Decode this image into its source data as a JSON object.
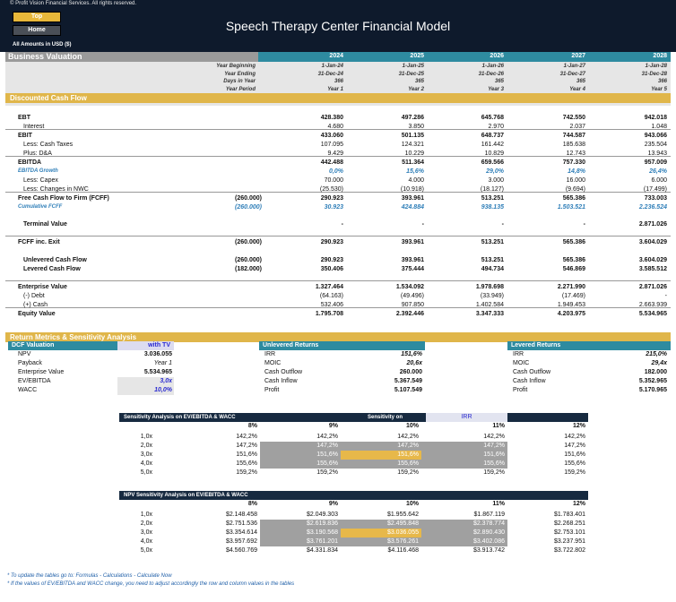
{
  "header": {
    "copyright": "© Profit Vision Financial Services. All rights reserved.",
    "top_button": "Top",
    "home_button": "Home",
    "title": "Speech Therapy Center Financial Model",
    "amounts": "All Amounts in  USD ($)"
  },
  "valuation": {
    "section_label": "Business Valuation",
    "years": [
      "2024",
      "2025",
      "2026",
      "2027",
      "2028"
    ],
    "period_rows": [
      {
        "label": "Year Beginning",
        "values": [
          "1-Jan-24",
          "1-Jan-25",
          "1-Jan-26",
          "1-Jan-27",
          "1-Jan-28"
        ]
      },
      {
        "label": "Year Ending",
        "values": [
          "31-Dec-24",
          "31-Dec-25",
          "31-Dec-26",
          "31-Dec-27",
          "31-Dec-28"
        ]
      },
      {
        "label": "Days in Year",
        "values": [
          "366",
          "365",
          "365",
          "365",
          "366"
        ]
      },
      {
        "label": "Year Period",
        "values": [
          "Year 1",
          "Year 2",
          "Year 3",
          "Year 4",
          "Year 5"
        ]
      }
    ]
  },
  "dcf": {
    "section_label": "Discounted Cash Flow",
    "rows": [
      {
        "label": "EBT",
        "v0": "",
        "vals": [
          "428.380",
          "497.286",
          "645.768",
          "742.550",
          "942.018"
        ],
        "style": "bold"
      },
      {
        "label": "Interest",
        "v0": "",
        "vals": [
          "4.680",
          "3.850",
          "2.970",
          "2.037",
          "1.048"
        ],
        "style": "indent"
      },
      {
        "label": "EBIT",
        "v0": "",
        "vals": [
          "433.060",
          "501.135",
          "648.737",
          "744.587",
          "943.066"
        ],
        "style": "bold"
      },
      {
        "label": "Less: Cash Taxes",
        "v0": "",
        "vals": [
          "107.095",
          "124.321",
          "161.442",
          "185.638",
          "235.504"
        ],
        "style": "indent"
      },
      {
        "label": "Plus: D&A",
        "v0": "",
        "vals": [
          "9.429",
          "10.229",
          "10.829",
          "12.743",
          "13.943"
        ],
        "style": "indent"
      },
      {
        "label": "EBITDA",
        "v0": "",
        "vals": [
          "442.488",
          "511.364",
          "659.566",
          "757.330",
          "957.009"
        ],
        "style": "bold"
      },
      {
        "label": "EBITDA Growth",
        "v0": "",
        "vals": [
          "0,0%",
          "15,6%",
          "29,0%",
          "14,8%",
          "26,4%"
        ],
        "style": "growth"
      },
      {
        "label": "Less: Capex",
        "v0": "",
        "vals": [
          "70.000",
          "4.000",
          "3.000",
          "16.000",
          "6.000"
        ],
        "style": "indent"
      },
      {
        "label": "Less: Changes in NWC",
        "v0": "",
        "vals": [
          "(25.530)",
          "(10.918)",
          "(18.127)",
          "(9.694)",
          "(17.499)"
        ],
        "style": "indent"
      },
      {
        "label": "Free Cash Flow to Firm (FCFF)",
        "v0": "(260.000)",
        "vals": [
          "290.923",
          "393.961",
          "513.251",
          "565.386",
          "733.003"
        ],
        "style": "bold"
      },
      {
        "label": "Cumulative FCFF",
        "v0": "(260.000)",
        "vals": [
          "30.923",
          "424.884",
          "938.135",
          "1.503.521",
          "2.236.524"
        ],
        "style": "growth"
      },
      {
        "label": "Terminal Value",
        "v0": "",
        "vals": [
          "-",
          "-",
          "-",
          "-",
          "2.871.026"
        ],
        "style": "boldind"
      },
      {
        "label": "FCFF inc. Exit",
        "v0": "(260.000)",
        "vals": [
          "290.923",
          "393.961",
          "513.251",
          "565.386",
          "3.604.029"
        ],
        "style": "bold"
      },
      {
        "label": "Unlevered Cash Flow",
        "v0": "(260.000)",
        "vals": [
          "290.923",
          "393.961",
          "513.251",
          "565.386",
          "3.604.029"
        ],
        "style": "boldind"
      },
      {
        "label": "Levered Cash Flow",
        "v0": "(182.000)",
        "vals": [
          "350.406",
          "375.444",
          "494.734",
          "546.869",
          "3.585.512"
        ],
        "style": "boldind"
      },
      {
        "label": "Enterprise Value",
        "v0": "",
        "vals": [
          "1.327.464",
          "1.534.092",
          "1.978.698",
          "2.271.990",
          "2.871.026"
        ],
        "style": "bold"
      },
      {
        "label": "(-) Debt",
        "v0": "",
        "vals": [
          "(64.163)",
          "(49.496)",
          "(33.949)",
          "(17.469)",
          "-"
        ],
        "style": "indent"
      },
      {
        "label": "(+) Cash",
        "v0": "",
        "vals": [
          "532.406",
          "907.850",
          "1.402.584",
          "1.949.453",
          "2.663.939"
        ],
        "style": "indent"
      },
      {
        "label": "Equity Value",
        "v0": "",
        "vals": [
          "1.795.708",
          "2.392.446",
          "3.347.333",
          "4.203.975",
          "5.534.965"
        ],
        "style": "bold"
      }
    ]
  },
  "returns": {
    "section_label": "Return Metrics & Sensitivity Analysis",
    "dcf_valuation": {
      "title": "DCF Valuation",
      "with_tv": "with TV",
      "rows": [
        {
          "label": "NPV",
          "value": "3.036.055"
        },
        {
          "label": "Payback",
          "value": "Year 1"
        },
        {
          "label": "Enterprise Value",
          "value": "5.534.965"
        },
        {
          "label": "EV/EBITDA",
          "value": "3,0x"
        },
        {
          "label": "WACC",
          "value": "10,0%"
        }
      ]
    },
    "unlevered": {
      "title": "Unlevered Returns",
      "rows": [
        {
          "label": "IRR",
          "value": "151,6%"
        },
        {
          "label": "MOIC",
          "value": "20,6x"
        },
        {
          "label": "Cash Outflow",
          "value": "260.000"
        },
        {
          "label": "Cash Inflow",
          "value": "5.367.549"
        },
        {
          "label": "Profit",
          "value": "5.107.549"
        }
      ]
    },
    "levered": {
      "title": "Levered Returns",
      "rows": [
        {
          "label": "IRR",
          "value": "215,0%"
        },
        {
          "label": "MOIC",
          "value": "29,4x"
        },
        {
          "label": "Cash Outflow",
          "value": "182.000"
        },
        {
          "label": "Cash Inflow",
          "value": "5.352.965"
        },
        {
          "label": "Profit",
          "value": "5.170.965"
        }
      ]
    }
  },
  "sens_irr": {
    "title": "Sensitivity Analysis on EV/EBITDA & WACC",
    "on_label": "Sensitivity on",
    "on_value": "IRR",
    "cols": [
      "8%",
      "9%",
      "10%",
      "11%",
      "12%"
    ],
    "rows": [
      {
        "label": "1,0x",
        "vals": [
          "142,2%",
          "142,2%",
          "142,2%",
          "142,2%",
          "142,2%"
        ]
      },
      {
        "label": "2,0x",
        "vals": [
          "147,2%",
          "147,2%",
          "147,2%",
          "147,2%",
          "147,2%"
        ]
      },
      {
        "label": "3,0x",
        "vals": [
          "151,6%",
          "151,6%",
          "151,6%",
          "151,6%",
          "151,6%"
        ]
      },
      {
        "label": "4,0x",
        "vals": [
          "155,6%",
          "155,6%",
          "155,6%",
          "155,6%",
          "155,6%"
        ]
      },
      {
        "label": "5,0x",
        "vals": [
          "159,2%",
          "159,2%",
          "159,2%",
          "159,2%",
          "159,2%"
        ]
      }
    ]
  },
  "sens_npv": {
    "title": "NPV Sensitivity Analysis on EV/EBITDA & WACC",
    "cols": [
      "8%",
      "9%",
      "10%",
      "11%",
      "12%"
    ],
    "rows": [
      {
        "label": "1,0x",
        "vals": [
          "$2.148.458",
          "$2.049.303",
          "$1.955.642",
          "$1.867.119",
          "$1.783.401"
        ]
      },
      {
        "label": "2,0x",
        "vals": [
          "$2.751.536",
          "$2.619.836",
          "$2.495.848",
          "$2.378.774",
          "$2.268.251"
        ]
      },
      {
        "label": "3,0x",
        "vals": [
          "$3.354.614",
          "$3.190.568",
          "$3.036.055",
          "$2.890.430",
          "$2.753.101"
        ]
      },
      {
        "label": "4,0x",
        "vals": [
          "$3.957.692",
          "$3.761.201",
          "$3.576.261",
          "$3.402.086",
          "$3.237.951"
        ]
      },
      {
        "label": "5,0x",
        "vals": [
          "$4.560.769",
          "$4.331.834",
          "$4.116.468",
          "$3.913.742",
          "$3.722.802"
        ]
      }
    ]
  },
  "footer": {
    "note1": "* To update the tables go to: Formulas - Calculations - Calculate Now",
    "note2": "* If the values of EV/EBITDA and WACC change, you need to adjust accordingly the row and column values in the tables"
  }
}
